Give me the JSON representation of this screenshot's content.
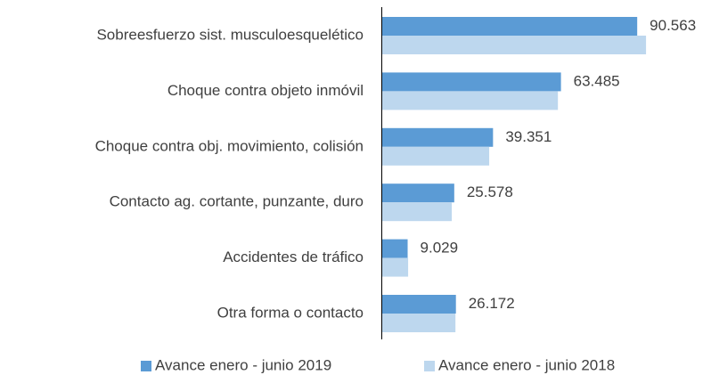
{
  "chart_data": {
    "type": "hbar",
    "categories": [
      "Sobreesfuerzo sist. musculoesquelético",
      "Choque contra objeto inmóvil",
      "Choque contra obj. movimiento, colisión",
      "Contacto ag. cortante, punzante, duro",
      "Accidentes de tráfico",
      "Otra forma o contacto"
    ],
    "series": [
      {
        "name": "Avance enero - junio 2019",
        "color": "#5b9bd5",
        "values": [
          90563,
          63485,
          39351,
          25578,
          9029,
          26172
        ],
        "value_labels": [
          "90.563",
          "63.485",
          "39.351",
          "25.578",
          "9.029",
          "26.172"
        ]
      },
      {
        "name": "Avance enero - junio 2018",
        "color": "#bdd7ee",
        "values": [
          93700,
          62400,
          38000,
          24700,
          9200,
          26000
        ]
      }
    ],
    "xlim": [
      0,
      100000
    ]
  }
}
